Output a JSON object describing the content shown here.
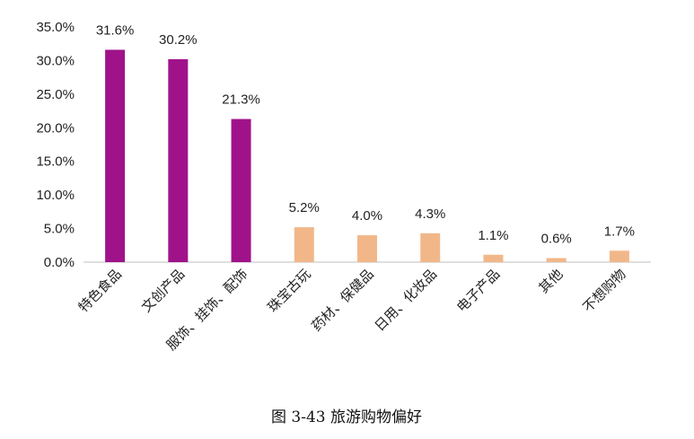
{
  "chart_data": {
    "type": "bar",
    "categories": [
      "特色食品",
      "文创产品",
      "服饰、挂饰、配饰",
      "珠宝古玩",
      "药材、保健品",
      "日用、化妆品",
      "电子产品",
      "其他",
      "不想购物"
    ],
    "values": [
      31.6,
      30.2,
      21.3,
      5.2,
      4.0,
      4.3,
      1.1,
      0.6,
      1.7
    ],
    "data_labels": [
      "31.6%",
      "30.2%",
      "21.3%",
      "5.2%",
      "4.0%",
      "4.3%",
      "1.1%",
      "0.6%",
      "1.7%"
    ],
    "bar_colors": [
      "#a0128a",
      "#a0128a",
      "#a0128a",
      "#f2b789",
      "#f2b789",
      "#f2b789",
      "#f2b789",
      "#f2b789",
      "#f2b789"
    ],
    "yticks": [
      0,
      5,
      10,
      15,
      20,
      25,
      30,
      35
    ],
    "ytick_labels": [
      "0.0%",
      "5.0%",
      "10.0%",
      "15.0%",
      "20.0%",
      "25.0%",
      "30.0%",
      "35.0%"
    ],
    "ylim": [
      0,
      35
    ],
    "grid": false,
    "caption": "图 3-43 旅游购物偏好",
    "title": "",
    "xlabel": "",
    "ylabel": ""
  }
}
